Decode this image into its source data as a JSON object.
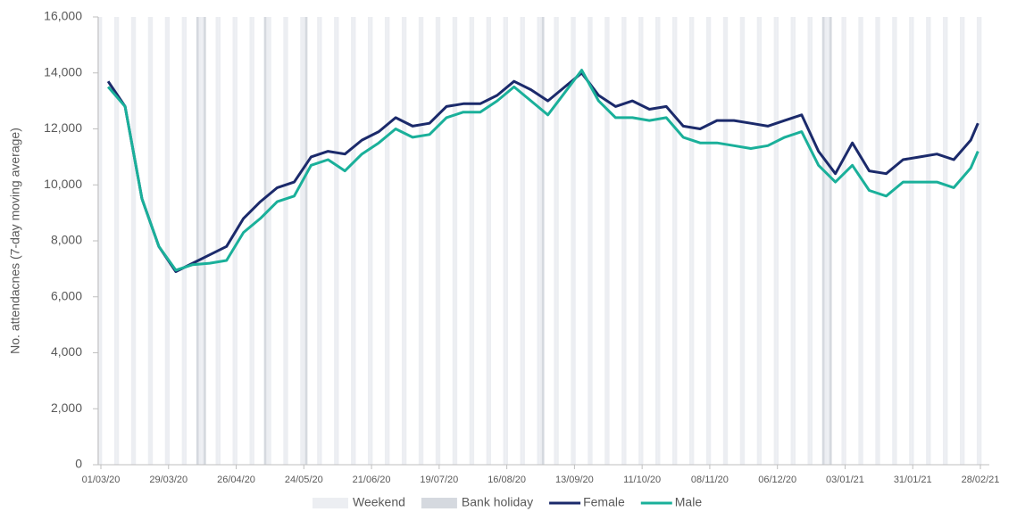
{
  "chart_data": {
    "type": "line",
    "y_label": "No. attendacnes (7-day moving average)",
    "x": [
      "04/03/20",
      "11/03/20",
      "18/03/20",
      "25/03/20",
      "01/04/20",
      "08/04/20",
      "15/04/20",
      "22/04/20",
      "29/04/20",
      "06/05/20",
      "13/05/20",
      "20/05/20",
      "27/05/20",
      "03/06/20",
      "10/06/20",
      "17/06/20",
      "24/06/20",
      "01/07/20",
      "08/07/20",
      "15/07/20",
      "22/07/20",
      "29/07/20",
      "05/08/20",
      "12/08/20",
      "19/08/20",
      "26/08/20",
      "02/09/20",
      "09/09/20",
      "16/09/20",
      "23/09/20",
      "30/09/20",
      "07/10/20",
      "14/10/20",
      "21/10/20",
      "28/10/20",
      "04/11/20",
      "11/11/20",
      "18/11/20",
      "25/11/20",
      "02/12/20",
      "09/12/20",
      "16/12/20",
      "23/12/20",
      "30/12/20",
      "06/01/21",
      "13/01/21",
      "20/01/21",
      "27/01/21",
      "03/02/21",
      "10/02/21",
      "17/02/21",
      "24/02/21",
      "27/02/21"
    ],
    "series": [
      {
        "name": "Female",
        "color": "#1b2a6b",
        "values": [
          13700,
          12800,
          9500,
          7800,
          6900,
          7200,
          7500,
          7800,
          8800,
          9400,
          9900,
          10100,
          11000,
          11200,
          11100,
          11600,
          11900,
          12400,
          12100,
          12200,
          12800,
          12900,
          12900,
          13200,
          13700,
          13400,
          13000,
          13500,
          14000,
          13200,
          12800,
          13000,
          12700,
          12800,
          12100,
          12000,
          12300,
          12300,
          12200,
          12100,
          12300,
          12500,
          11200,
          10400,
          11500,
          10500,
          10400,
          10900,
          11000,
          11100,
          10900,
          11600,
          12200
        ]
      },
      {
        "name": "Male",
        "color": "#1ab09a",
        "values": [
          13500,
          12800,
          9500,
          7800,
          6950,
          7150,
          7200,
          7300,
          8300,
          8800,
          9400,
          9600,
          10700,
          10900,
          10500,
          11100,
          11500,
          12000,
          11700,
          11800,
          12400,
          12600,
          12600,
          13000,
          13500,
          13000,
          12500,
          13300,
          14100,
          13000,
          12400,
          12400,
          12300,
          12400,
          11700,
          11500,
          11500,
          11400,
          11300,
          11400,
          11700,
          11900,
          10700,
          10100,
          10700,
          9800,
          9600,
          10100,
          10100,
          10100,
          9900,
          10600,
          11200
        ]
      }
    ],
    "shading": [
      {
        "name": "Weekend",
        "color": "#eceef2"
      },
      {
        "name": "Bank holiday",
        "color": "#d5d9df",
        "dates": [
          "10/04/20",
          "13/04/20",
          "08/05/20",
          "25/05/20",
          "31/08/20",
          "25/12/20",
          "28/12/20"
        ]
      }
    ],
    "xlim": [
      "01/03/20",
      "28/02/21"
    ],
    "xticks": [
      "01/03/20",
      "29/03/20",
      "26/04/20",
      "24/05/20",
      "21/06/20",
      "19/07/20",
      "16/08/20",
      "13/09/20",
      "11/10/20",
      "08/11/20",
      "06/12/20",
      "03/01/21",
      "31/01/21",
      "28/02/21"
    ],
    "ylim": [
      0,
      16000
    ],
    "yticks": [
      0,
      {
        "value": 2000,
        "label": "2,000"
      },
      {
        "value": 4000,
        "label": "4,000"
      },
      {
        "value": 6000,
        "label": "6,000"
      },
      {
        "value": 8000,
        "label": "8,000"
      },
      {
        "value": 10000,
        "label": "10,000"
      },
      {
        "value": 12000,
        "label": "12,000"
      },
      {
        "value": 14000,
        "label": "14,000"
      },
      {
        "value": 16000,
        "label": "16,000"
      }
    ],
    "legend": "bottom"
  }
}
